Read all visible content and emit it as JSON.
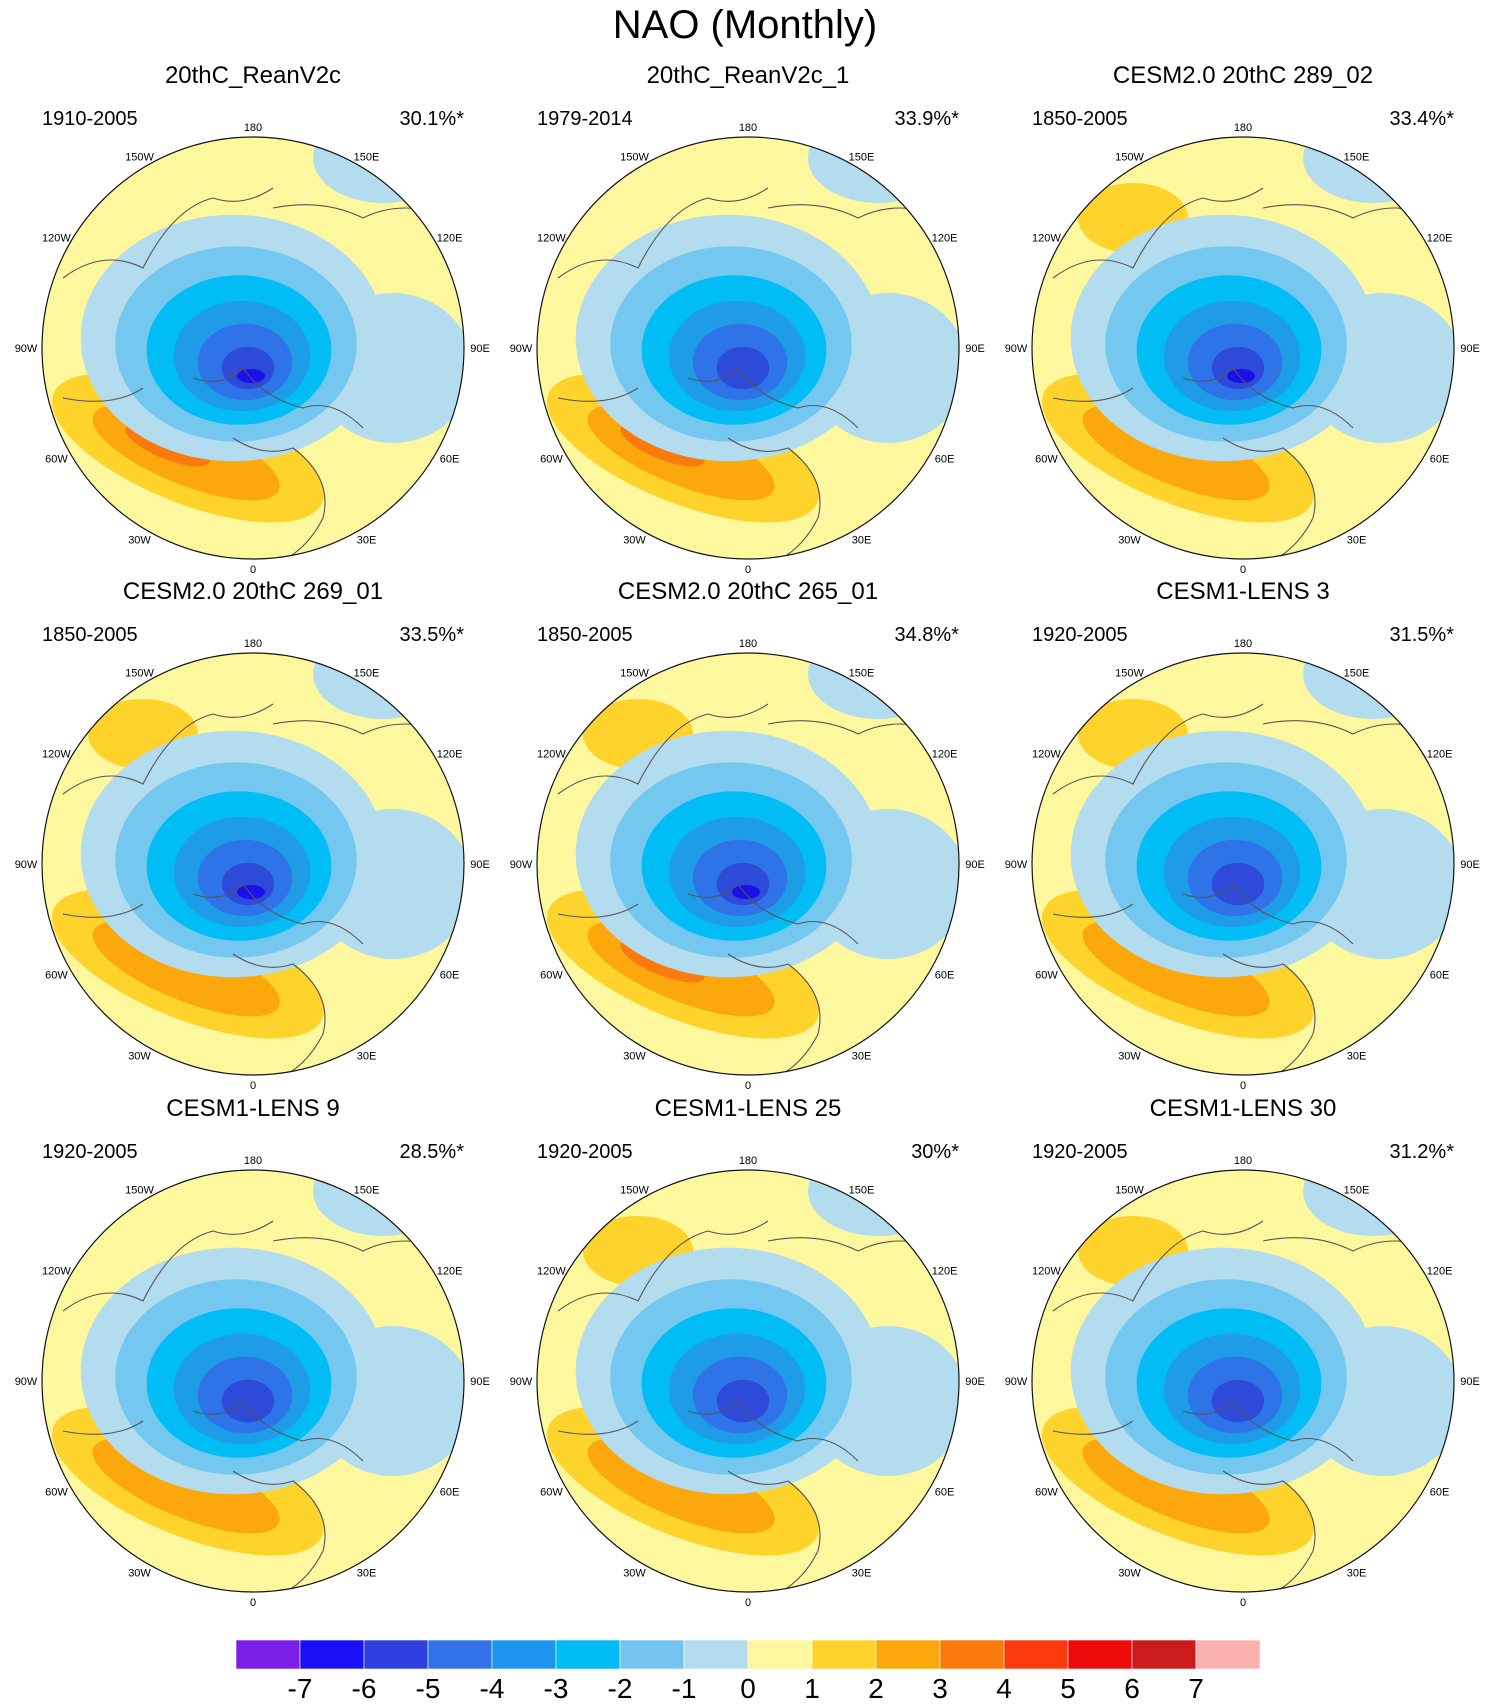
{
  "figure_title": "NAO (Monthly)",
  "longitude_labels": [
    "180",
    "150E",
    "120E",
    "90E",
    "60E",
    "30E",
    "0",
    "30W",
    "60W",
    "90W",
    "120W",
    "150W"
  ],
  "palette": {
    "pole_blue": "#1a10e8",
    "neg5": "#2e4ad8",
    "neg4": "#2e74e8",
    "neg3": "#1e9ce8",
    "neg2": "#00bdf5",
    "neg1": "#74c8ef",
    "neg0": "#b4dcef",
    "pos0": "#fdf79e",
    "pos1": "#fdd32c",
    "pos2": "#fca70c",
    "pos3": "#fb7a0e",
    "coast": "#555555",
    "frame": "#111111"
  },
  "chart_data": [
    {
      "type": "heatmap",
      "projection": "north-polar-stereographic",
      "title": "20thC_ReanV2c",
      "period": "1910-2005",
      "variance": "30.1%*",
      "low_level": -6,
      "high_level": 3
    },
    {
      "type": "heatmap",
      "projection": "north-polar-stereographic",
      "title": "20thC_ReanV2c_1",
      "period": "1979-2014",
      "variance": "33.9%*",
      "low_level": -5,
      "high_level": 3
    },
    {
      "type": "heatmap",
      "projection": "north-polar-stereographic",
      "title": "CESM2.0 20thC 289_02",
      "period": "1850-2005",
      "variance": "33.4%*",
      "low_level": -6,
      "high_level": 2
    },
    {
      "type": "heatmap",
      "projection": "north-polar-stereographic",
      "title": "CESM2.0 20thC 269_01",
      "period": "1850-2005",
      "variance": "33.5%*",
      "low_level": -6,
      "high_level": 2
    },
    {
      "type": "heatmap",
      "projection": "north-polar-stereographic",
      "title": "CESM2.0 20thC 265_01",
      "period": "1850-2005",
      "variance": "34.8%*",
      "low_level": -6,
      "high_level": 3
    },
    {
      "type": "heatmap",
      "projection": "north-polar-stereographic",
      "title": "CESM1-LENS 3",
      "period": "1920-2005",
      "variance": "31.5%*",
      "low_level": -5,
      "high_level": 2
    },
    {
      "type": "heatmap",
      "projection": "north-polar-stereographic",
      "title": "CESM1-LENS 9",
      "period": "1920-2005",
      "variance": "28.5%*",
      "low_level": -5,
      "high_level": 2
    },
    {
      "type": "heatmap",
      "projection": "north-polar-stereographic",
      "title": "CESM1-LENS 25",
      "period": "1920-2005",
      "variance": "30%*",
      "low_level": -5,
      "high_level": 2
    },
    {
      "type": "heatmap",
      "projection": "north-polar-stereographic",
      "title": "CESM1-LENS 30",
      "period": "1920-2005",
      "variance": "31.2%*",
      "low_level": -5,
      "high_level": 2
    }
  ],
  "colorbar": {
    "labels": [
      "-7",
      "-6",
      "-5",
      "-4",
      "-3",
      "-2",
      "-1",
      "0",
      "1",
      "2",
      "3",
      "4",
      "5",
      "6",
      "7"
    ],
    "colors": [
      "#7b1ee8",
      "#1a10f5",
      "#2e40e0",
      "#3172e8",
      "#1e96f0",
      "#00bcf5",
      "#74c4ef",
      "#b4dcef",
      "#fdf79e",
      "#fdd32c",
      "#fca70c",
      "#fb7a0e",
      "#fb3a0e",
      "#ee0a0a",
      "#cc1b1b",
      "#fbb0b0"
    ]
  }
}
